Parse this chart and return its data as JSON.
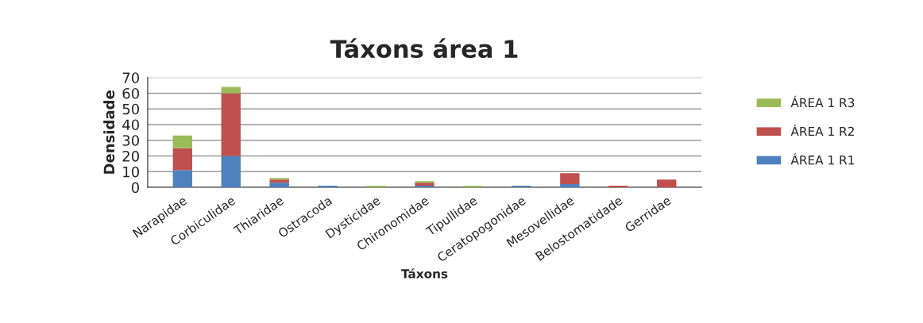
{
  "chart_data": {
    "type": "bar",
    "title": "Táxons área 1",
    "xlabel": "Táxons",
    "ylabel": "Densidade",
    "stacked": true,
    "categories": [
      "Narapidae",
      "Corbiculidae",
      "Thiaridae",
      "Ostracoda",
      "Dysticidae",
      "Chironomidae",
      "Tipullidae",
      "Ceratopogonidae",
      "Mesovellidae",
      "Belostomatidade",
      "Gerridae"
    ],
    "series": [
      {
        "name": "ÁREA 1 R1",
        "color": "#4f81bd",
        "values": [
          11,
          20,
          3,
          1,
          0,
          1,
          0,
          1,
          2,
          0,
          0
        ]
      },
      {
        "name": "ÁREA 1 R2",
        "color": "#c0504d",
        "values": [
          14,
          40,
          2,
          0,
          0,
          2,
          0,
          0,
          7,
          1,
          5
        ]
      },
      {
        "name": "ÁREA 1 R3",
        "color": "#9bbb59",
        "values": [
          8,
          4,
          1,
          0,
          1,
          1,
          1,
          0,
          0,
          0,
          0
        ]
      }
    ],
    "ylim": [
      0,
      70
    ],
    "yticks": [
      0,
      10,
      20,
      30,
      40,
      50,
      60,
      70
    ],
    "grid": "y",
    "legend": "right"
  }
}
